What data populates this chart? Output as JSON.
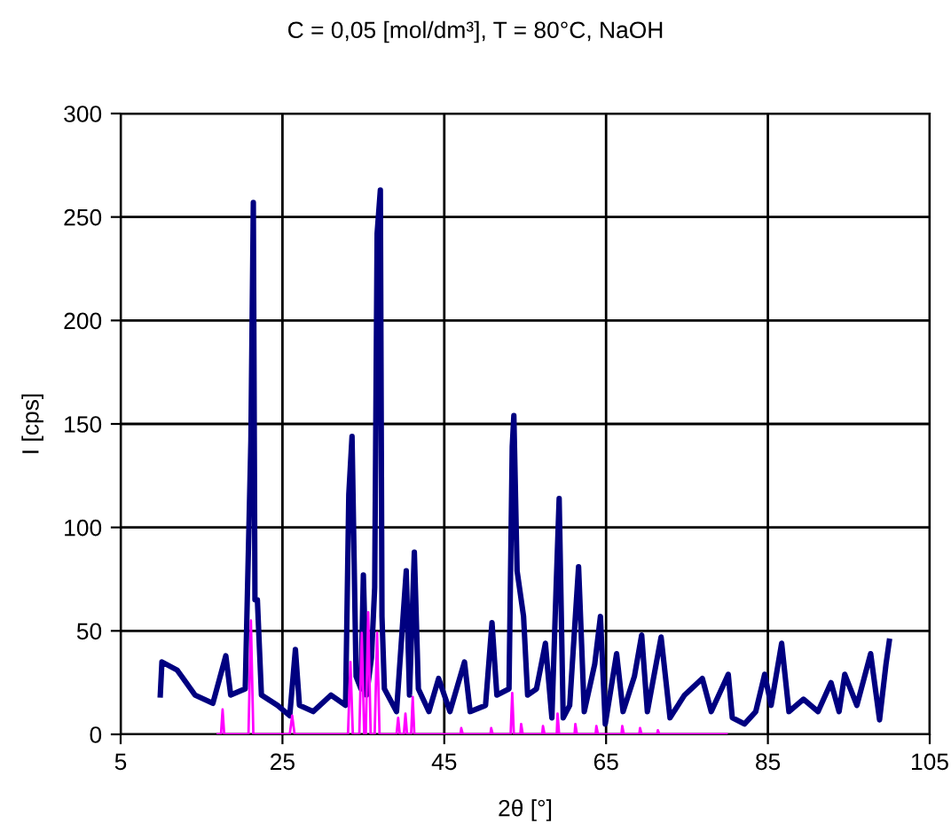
{
  "chart_data": {
    "type": "line",
    "title": "C = 0,05 [mol/dm³], T = 80°C, NaOH",
    "xlabel": "2θ [°]",
    "ylabel": "I [cps]",
    "xlim": [
      5,
      105
    ],
    "xticks": [
      5,
      25,
      45,
      65,
      85,
      105
    ],
    "ylim": [
      0,
      300
    ],
    "yticks": [
      0,
      50,
      100,
      150,
      200,
      250,
      300
    ],
    "grid": true,
    "marker": "none",
    "line_style": "solid",
    "series": [
      {
        "color": "#000080",
        "x": [
          9.9,
          10.1,
          12.0,
          14.2,
          16.4,
          18.0,
          18.6,
          20.4,
          21.1,
          21.4,
          21.6,
          21.9,
          22.4,
          24.4,
          25.9,
          26.6,
          27.1,
          28.8,
          31.0,
          32.8,
          33.2,
          33.6,
          34.1,
          34.7,
          35.0,
          35.4,
          36.0,
          36.4,
          36.7,
          37.1,
          37.3,
          37.6,
          39.1,
          40.3,
          40.7,
          41.3,
          41.8,
          43.1,
          44.3,
          45.7,
          47.5,
          48.2,
          50.1,
          50.9,
          51.5,
          53.0,
          53.4,
          53.6,
          54.0,
          54.8,
          55.3,
          56.4,
          57.5,
          58.3,
          58.8,
          59.2,
          59.7,
          60.5,
          61.6,
          62.3,
          63.6,
          64.3,
          64.9,
          66.3,
          67.1,
          68.5,
          69.4,
          70.1,
          71.8,
          72.9,
          74.7,
          76.9,
          78.0,
          80.1,
          80.6,
          82.1,
          83.5,
          84.6,
          85.4,
          86.7,
          87.6,
          89.4,
          91.2,
          92.8,
          93.8,
          94.5,
          96.0,
          97.7,
          98.8,
          99.6,
          100.0
        ],
        "values": [
          19,
          35,
          31,
          19,
          15,
          38,
          19,
          22,
          142,
          257,
          65,
          65,
          19,
          14,
          9,
          41,
          14,
          11,
          19,
          14,
          116,
          144,
          28,
          22,
          77,
          19,
          37,
          71,
          242,
          263,
          57,
          22,
          11,
          79,
          19,
          88,
          22,
          11,
          27,
          11,
          35,
          11,
          14,
          54,
          19,
          22,
          139,
          154,
          79,
          57,
          19,
          22,
          44,
          8,
          68,
          114,
          8,
          14,
          81,
          11,
          34,
          57,
          5,
          39,
          11,
          28,
          48,
          11,
          47,
          8,
          19,
          27,
          11,
          29,
          8,
          5,
          11,
          29,
          14,
          44,
          11,
          17,
          11,
          25,
          11,
          29,
          14,
          39,
          7,
          34,
          45
        ]
      },
      {
        "color": "#ff00ff",
        "x": [
          17.0,
          17.4,
          17.6,
          17.8,
          20.8,
          21.1,
          21.4,
          25.9,
          26.2,
          26.5,
          33.1,
          33.4,
          33.7,
          34.5,
          34.8,
          35.1,
          35.3,
          35.6,
          35.9,
          36.4,
          36.7,
          37.0,
          39.1,
          39.3,
          39.5,
          40.0,
          40.2,
          40.4,
          40.9,
          41.1,
          41.3,
          47.0,
          47.1,
          47.3,
          50.7,
          50.8,
          51.0,
          53.2,
          53.4,
          53.6,
          54.4,
          54.5,
          54.7,
          57.1,
          57.2,
          57.4,
          58.9,
          59.0,
          59.2,
          61.1,
          61.2,
          61.4,
          63.7,
          63.8,
          64.0,
          66.9,
          67.0,
          67.2,
          69.1,
          69.2,
          69.4,
          71.3,
          71.4,
          71.6,
          79.9
        ],
        "values": [
          0,
          0,
          12,
          0,
          0,
          55,
          0,
          0,
          9,
          0,
          0,
          35,
          0,
          0,
          49,
          0,
          0,
          59,
          0,
          0,
          49,
          0,
          0,
          8,
          0,
          0,
          10,
          0,
          0,
          18,
          0,
          0,
          3,
          0,
          0,
          3,
          0,
          0,
          20,
          0,
          0,
          5,
          0,
          0,
          4,
          0,
          0,
          10,
          0,
          0,
          5,
          0,
          0,
          4,
          0,
          0,
          4,
          0,
          0,
          3,
          0,
          0,
          2,
          0,
          0
        ]
      }
    ]
  }
}
